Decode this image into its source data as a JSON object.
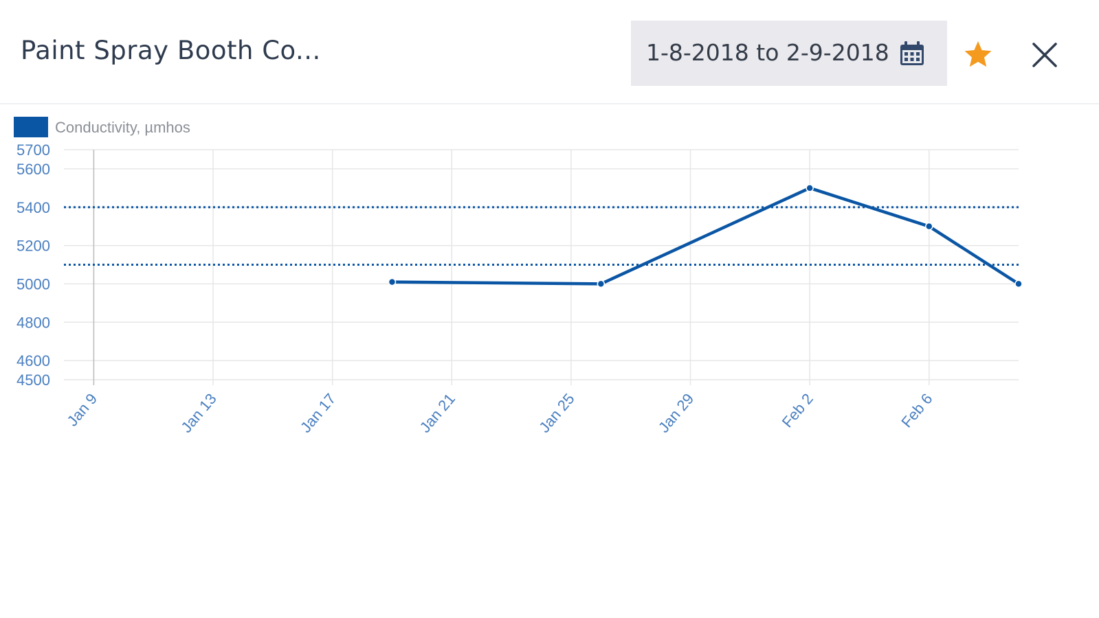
{
  "header": {
    "title": "Paint Spray Booth Co...",
    "date_range": "1-8-2018 to 2-9-2018",
    "calendar_icon": "calendar-icon",
    "favorite_icon": "star-icon",
    "close_icon": "close-icon"
  },
  "colors": {
    "series": "#0b56a4",
    "axis_text": "#4a7fc0",
    "star": "#f49a1f",
    "grid": "#e6e6e6"
  },
  "chart_data": {
    "type": "line",
    "title": "",
    "xlabel": "",
    "ylabel": "",
    "legend": {
      "position": "top-left",
      "entries": [
        "Conductivity, µmhos"
      ]
    },
    "grid": true,
    "ylim": [
      4500,
      5700
    ],
    "xlim": [
      "2018-01-08",
      "2018-02-09"
    ],
    "y_ticks": [
      4500,
      4600,
      4800,
      5000,
      5200,
      5400,
      5600,
      5700
    ],
    "x_ticks": [
      {
        "date": "2018-01-09",
        "label": "Jan 9"
      },
      {
        "date": "2018-01-13",
        "label": "Jan 13"
      },
      {
        "date": "2018-01-17",
        "label": "Jan 17"
      },
      {
        "date": "2018-01-21",
        "label": "Jan 21"
      },
      {
        "date": "2018-01-25",
        "label": "Jan 25"
      },
      {
        "date": "2018-01-29",
        "label": "Jan 29"
      },
      {
        "date": "2018-02-02",
        "label": "Feb 2"
      },
      {
        "date": "2018-02-06",
        "label": "Feb 6"
      }
    ],
    "series": [
      {
        "name": "Conductivity, µmhos",
        "points": [
          {
            "x": "2018-01-19",
            "y": 5010
          },
          {
            "x": "2018-01-26",
            "y": 5000
          },
          {
            "x": "2018-02-02",
            "y": 5500
          },
          {
            "x": "2018-02-06",
            "y": 5300
          },
          {
            "x": "2018-02-09",
            "y": 5000
          }
        ]
      }
    ],
    "reference_lines": [
      {
        "y": 5400,
        "style": "dotted"
      },
      {
        "y": 5100,
        "style": "dotted"
      }
    ]
  }
}
